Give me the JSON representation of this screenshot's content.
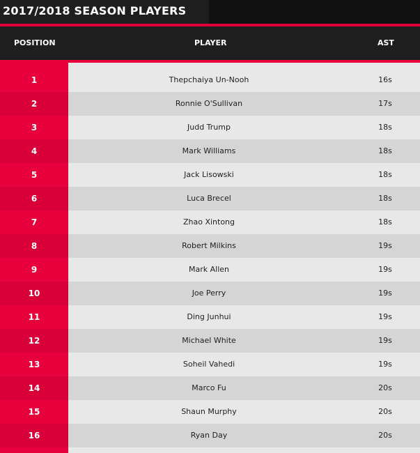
{
  "title": "2017/2018 SEASON PLAYERS",
  "columns": {
    "position": "POSITION",
    "player": "PLAYER",
    "ast": "AST"
  },
  "colors": {
    "accent": "#e8003d",
    "header_bg": "#1e1e1e",
    "row_light": "#e8e8e8",
    "row_dark": "#d5d5d5"
  },
  "rows": [
    {
      "position": "1",
      "player": "Thepchaiya Un-Nooh",
      "ast": "16s"
    },
    {
      "position": "2",
      "player": "Ronnie O'Sullivan",
      "ast": "17s"
    },
    {
      "position": "3",
      "player": "Judd Trump",
      "ast": "18s"
    },
    {
      "position": "4",
      "player": "Mark Williams",
      "ast": "18s"
    },
    {
      "position": "5",
      "player": "Jack Lisowski",
      "ast": "18s"
    },
    {
      "position": "6",
      "player": "Luca Brecel",
      "ast": "18s"
    },
    {
      "position": "7",
      "player": "Zhao Xintong",
      "ast": "18s"
    },
    {
      "position": "8",
      "player": "Robert Milkins",
      "ast": "19s"
    },
    {
      "position": "9",
      "player": "Mark Allen",
      "ast": "19s"
    },
    {
      "position": "10",
      "player": "Joe Perry",
      "ast": "19s"
    },
    {
      "position": "11",
      "player": "Ding Junhui",
      "ast": "19s"
    },
    {
      "position": "12",
      "player": "Michael White",
      "ast": "19s"
    },
    {
      "position": "13",
      "player": "Soheil Vahedi",
      "ast": "19s"
    },
    {
      "position": "14",
      "player": "Marco Fu",
      "ast": "20s"
    },
    {
      "position": "15",
      "player": "Shaun Murphy",
      "ast": "20s"
    },
    {
      "position": "16",
      "player": "Ryan Day",
      "ast": "20s"
    }
  ]
}
